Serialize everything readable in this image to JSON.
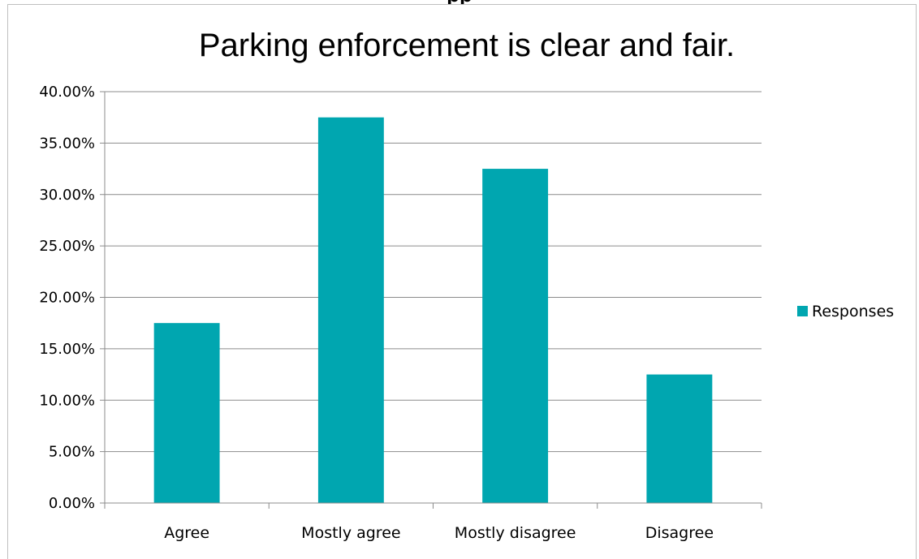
{
  "chart_data": {
    "type": "bar",
    "title": "Parking enforcement is clear and fair.",
    "categories": [
      "Agree",
      "Mostly agree",
      "Mostly disagree",
      "Disagree"
    ],
    "series": [
      {
        "name": "Responses",
        "values": [
          0.175,
          0.375,
          0.325,
          0.125
        ],
        "color": "#00A6B0"
      }
    ],
    "ylim": [
      0,
      0.4
    ],
    "yticks": [
      "0.00%",
      "5.00%",
      "10.00%",
      "15.00%",
      "20.00%",
      "25.00%",
      "30.00%",
      "35.00%",
      "40.00%"
    ],
    "grid": true,
    "legend_position": "right",
    "xlabel": "",
    "ylabel": ""
  },
  "top_cut_text": "pp"
}
